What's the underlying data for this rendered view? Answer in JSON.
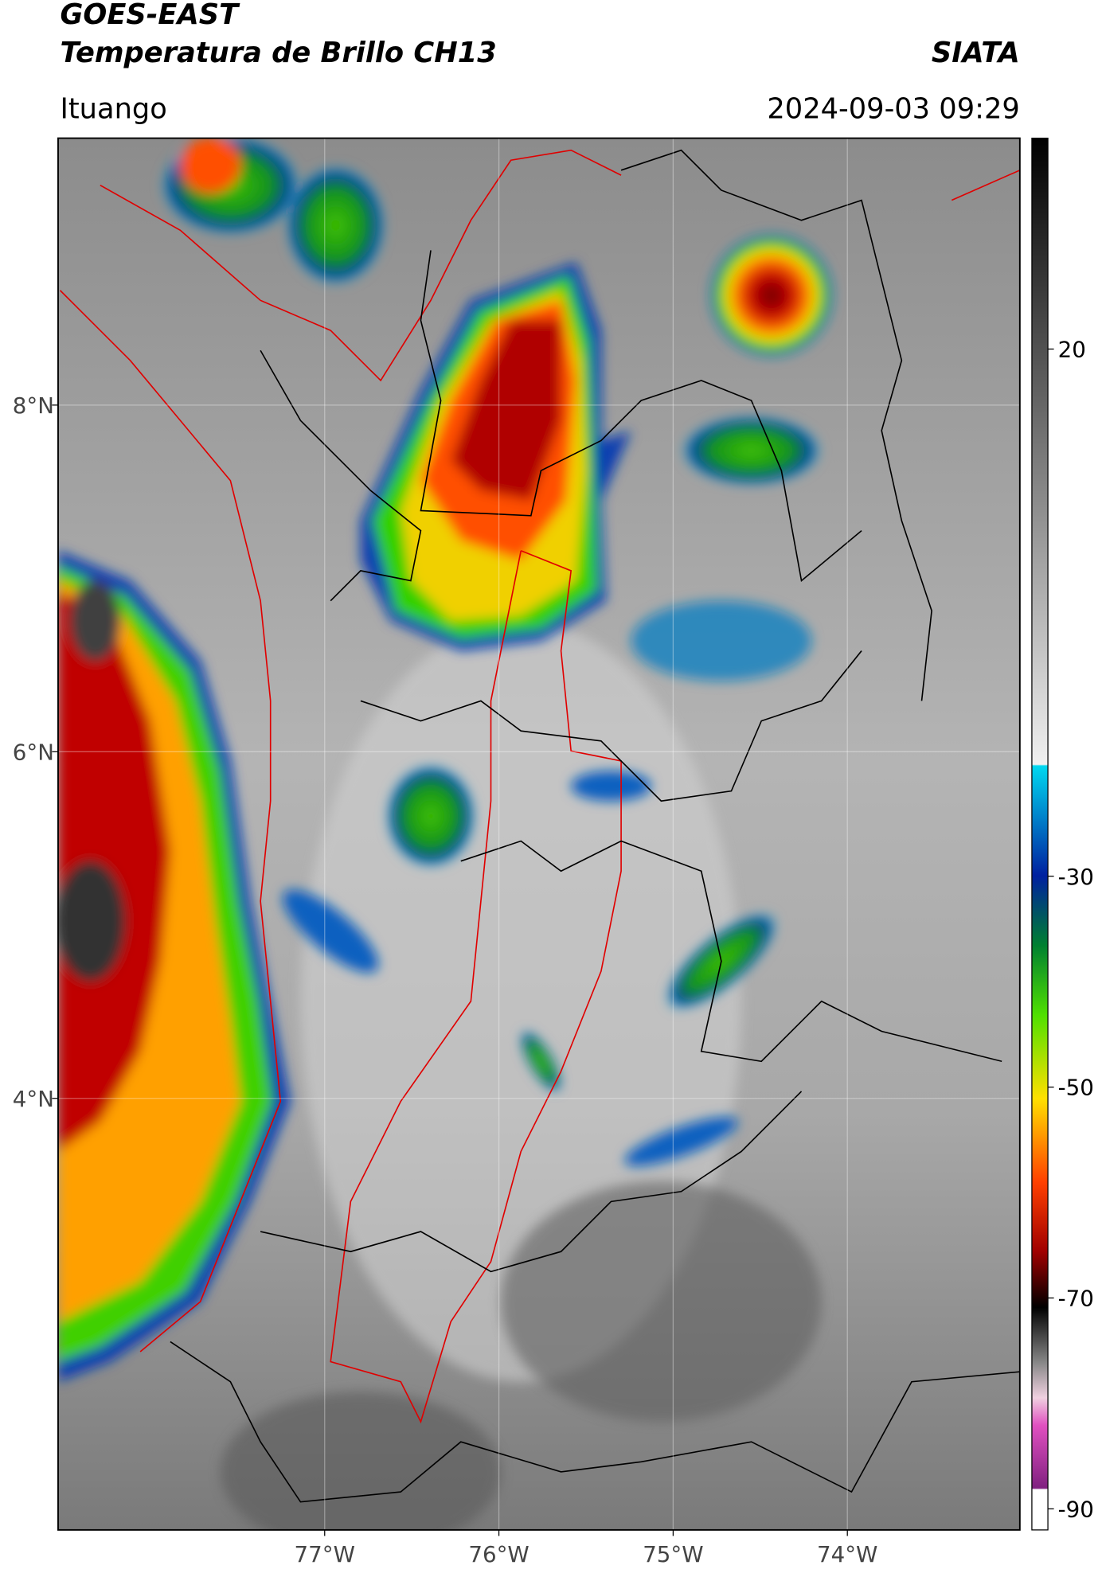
{
  "header": {
    "title": "GOES-EAST",
    "subtitle": "Temperatura de Brillo CH13",
    "brand": "SIATA",
    "location": "Ituango",
    "timestamp": "2024-09-03 09:29"
  },
  "map": {
    "xlim": [
      -78.53,
      -73.01
    ],
    "ylim": [
      1.51,
      9.54
    ],
    "xticks": [
      {
        "value": -77,
        "label": "77°W"
      },
      {
        "value": -76,
        "label": "76°W"
      },
      {
        "value": -75,
        "label": "75°W"
      },
      {
        "value": -74,
        "label": "74°W"
      }
    ],
    "yticks": [
      {
        "value": 8,
        "label": "8°N"
      },
      {
        "value": 6,
        "label": "6°N"
      },
      {
        "value": 4,
        "label": "4°N"
      }
    ],
    "grid": true
  },
  "colorbar": {
    "lim": [
      -92,
      40
    ],
    "ticks": [
      20,
      -30,
      -50,
      -70,
      -90
    ]
  }
}
